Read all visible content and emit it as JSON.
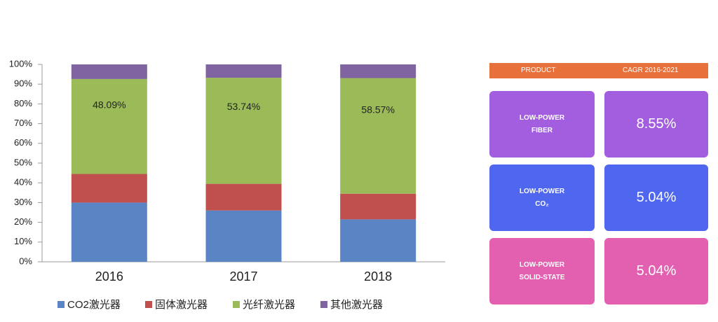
{
  "chart_data": {
    "type": "stacked_bar_percent",
    "categories": [
      "2016",
      "2017",
      "2018"
    ],
    "series": [
      {
        "name": "CO2激光器",
        "color": "#5b84c4",
        "values": [
          30,
          26,
          21.5
        ]
      },
      {
        "name": "固体激光器",
        "color": "#c0504d",
        "values": [
          14.5,
          13.5,
          13
        ]
      },
      {
        "name": "光纤激光器",
        "color": "#9bbb59",
        "values": [
          48.09,
          53.74,
          58.57
        ],
        "value_labels": [
          "48.09%",
          "53.74%",
          "58.57%"
        ]
      },
      {
        "name": "其他激光器",
        "color": "#8064a2",
        "values": [
          7.41,
          6.76,
          6.93
        ]
      }
    ],
    "ylim": [
      0,
      100
    ],
    "yticks": [
      {
        "value": 0,
        "label": "0%"
      },
      {
        "value": 10,
        "label": "10%"
      },
      {
        "value": 20,
        "label": "20%"
      },
      {
        "value": 30,
        "label": "30%"
      },
      {
        "value": 40,
        "label": "40%"
      },
      {
        "value": 50,
        "label": "50%"
      },
      {
        "value": 60,
        "label": "60%"
      },
      {
        "value": 70,
        "label": "70%"
      },
      {
        "value": 80,
        "label": "80%"
      },
      {
        "value": 90,
        "label": "90%"
      },
      {
        "value": 100,
        "label": "100%"
      }
    ],
    "grid": false
  },
  "table": {
    "header": [
      "PRODUCT",
      "CAGR 2016-2021"
    ],
    "rows": [
      {
        "product": [
          "LOW-POWER",
          "FIBER"
        ],
        "cagr": "8.55%"
      },
      {
        "product": [
          "LOW-POWER",
          "CO₂"
        ],
        "cagr": "5.04%"
      },
      {
        "product": [
          "LOW-POWER",
          "SOLID-STATE"
        ],
        "cagr": "5.04%"
      }
    ]
  }
}
